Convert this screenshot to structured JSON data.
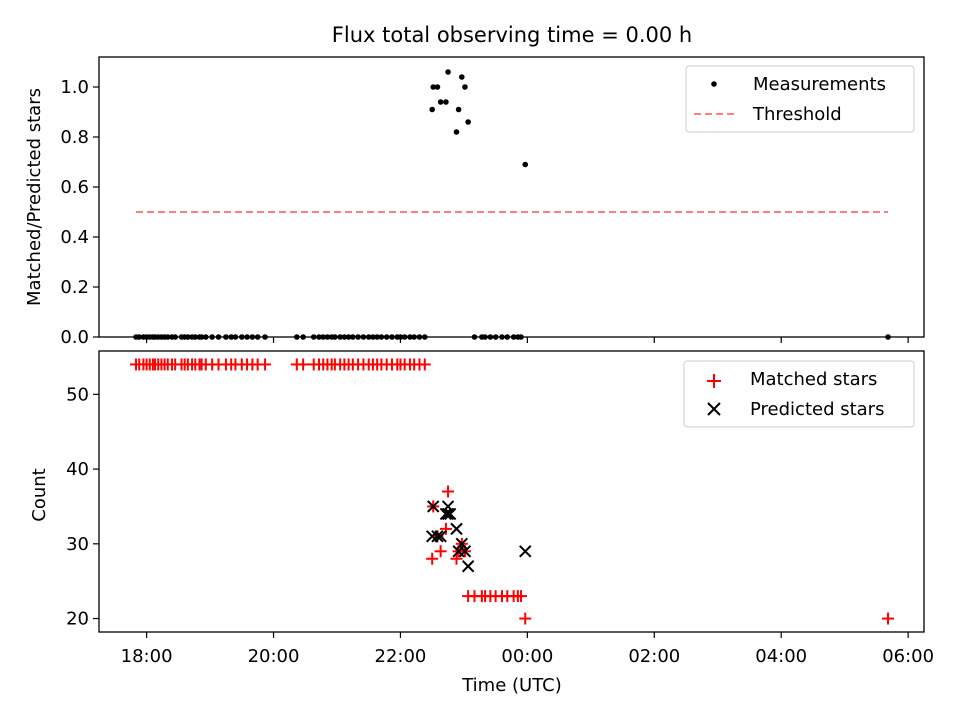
{
  "chart_data": [
    {
      "type": "scatter",
      "title": "Flux total observing time = 0.00 h",
      "xlabel": "",
      "ylabel": "Matched/Predicted stars",
      "xlim": [
        "17:15",
        "30:15"
      ],
      "ylim": [
        0.0,
        1.12
      ],
      "yticks": [
        "0.0",
        "0.2",
        "0.4",
        "0.6",
        "0.8",
        "1.0"
      ],
      "legend": "top-right",
      "series": [
        {
          "name": "Measurements",
          "marker": "dot",
          "color": "#000000",
          "x": [
            "17:50",
            "17:53",
            "17:57",
            "18:00",
            "18:03",
            "18:06",
            "18:08",
            "18:11",
            "18:14",
            "18:17",
            "18:20",
            "18:24",
            "18:27",
            "18:33",
            "18:36",
            "18:39",
            "18:43",
            "18:46",
            "18:50",
            "18:52",
            "18:56",
            "19:02",
            "19:08",
            "19:15",
            "19:20",
            "19:24",
            "19:30",
            "19:35",
            "19:40",
            "19:45",
            "19:52",
            "20:22",
            "20:28",
            "20:38",
            "20:43",
            "20:47",
            "20:51",
            "20:55",
            "20:58",
            "21:03",
            "21:07",
            "21:11",
            "21:15",
            "21:20",
            "21:25",
            "21:30",
            "21:34",
            "21:38",
            "21:42",
            "21:47",
            "21:52",
            "21:57",
            "22:00",
            "22:04",
            "22:09",
            "22:13",
            "22:18",
            "22:23",
            "22:30",
            "22:31",
            "22:35",
            "22:38",
            "22:43",
            "22:45",
            "22:53",
            "22:55",
            "22:58",
            "23:01",
            "23:04",
            "23:10",
            "23:17",
            "23:20",
            "23:25",
            "23:30",
            "23:36",
            "23:41",
            "23:47",
            "23:51",
            "23:54",
            "23:58",
            "29:41"
          ],
          "y": [
            0,
            0,
            0,
            0,
            0,
            0,
            0,
            0,
            0,
            0,
            0,
            0,
            0,
            0,
            0,
            0,
            0,
            0,
            0,
            0,
            0,
            0,
            0,
            0,
            0,
            0,
            0,
            0,
            0,
            0,
            0,
            0,
            0,
            0,
            0,
            0,
            0,
            0,
            0,
            0,
            0,
            0,
            0,
            0,
            0,
            0,
            0,
            0,
            0,
            0,
            0,
            0,
            0,
            0,
            0,
            0,
            0,
            0,
            0.91,
            1.0,
            1.0,
            0.94,
            0.94,
            1.06,
            0.82,
            0.91,
            1.04,
            1.0,
            0.86,
            0,
            0,
            0,
            0,
            0,
            0,
            0,
            0,
            0,
            0,
            0.69,
            0
          ]
        },
        {
          "name": "Threshold",
          "style": "dashed",
          "color": "#ff7f7f",
          "x": [
            "17:50",
            "29:41"
          ],
          "y": [
            0.5,
            0.5
          ]
        }
      ]
    },
    {
      "type": "scatter",
      "title": "",
      "xlabel": "Time (UTC)",
      "ylabel": "Count",
      "xlim": [
        "17:15",
        "30:15"
      ],
      "ylim": [
        18.2,
        55.8
      ],
      "xticks": [
        "18:00",
        "20:00",
        "22:00",
        "00:00",
        "02:00",
        "04:00",
        "06:00"
      ],
      "yticks": [
        "20",
        "30",
        "40",
        "50"
      ],
      "legend": "top-right",
      "series": [
        {
          "name": "Matched stars",
          "marker": "plus",
          "color": "#ff0000",
          "x": [
            "17:50",
            "17:53",
            "17:57",
            "18:00",
            "18:03",
            "18:06",
            "18:08",
            "18:11",
            "18:14",
            "18:17",
            "18:20",
            "18:24",
            "18:27",
            "18:33",
            "18:36",
            "18:39",
            "18:43",
            "18:46",
            "18:50",
            "18:52",
            "18:56",
            "19:02",
            "19:08",
            "19:15",
            "19:20",
            "19:24",
            "19:30",
            "19:35",
            "19:40",
            "19:45",
            "19:52",
            "20:22",
            "20:28",
            "20:38",
            "20:43",
            "20:47",
            "20:51",
            "20:55",
            "20:58",
            "21:03",
            "21:07",
            "21:11",
            "21:15",
            "21:20",
            "21:25",
            "21:30",
            "21:34",
            "21:38",
            "21:42",
            "21:47",
            "21:52",
            "21:57",
            "22:00",
            "22:04",
            "22:09",
            "22:13",
            "22:18",
            "22:23",
            "22:30",
            "22:31",
            "22:35",
            "22:38",
            "22:43",
            "22:45",
            "22:53",
            "22:55",
            "22:58",
            "23:01",
            "23:04",
            "23:10",
            "23:17",
            "23:20",
            "23:25",
            "23:30",
            "23:36",
            "23:41",
            "23:47",
            "23:51",
            "23:54",
            "23:58",
            "29:41"
          ],
          "y": [
            54,
            54,
            54,
            54,
            54,
            54,
            54,
            54,
            54,
            54,
            54,
            54,
            54,
            54,
            54,
            54,
            54,
            54,
            54,
            54,
            54,
            54,
            54,
            54,
            54,
            54,
            54,
            54,
            54,
            54,
            54,
            54,
            54,
            54,
            54,
            54,
            54,
            54,
            54,
            54,
            54,
            54,
            54,
            54,
            54,
            54,
            54,
            54,
            54,
            54,
            54,
            54,
            54,
            54,
            54,
            54,
            54,
            54,
            28,
            35,
            31,
            29,
            32,
            37,
            28,
            29,
            30,
            29,
            23,
            23,
            23,
            23,
            23,
            23,
            23,
            23,
            23,
            23,
            23,
            20,
            20
          ]
        },
        {
          "name": "Predicted stars",
          "marker": "x",
          "color": "#000000",
          "x": [
            "22:30",
            "22:31",
            "22:35",
            "22:38",
            "22:43",
            "22:45",
            "22:45",
            "22:47",
            "22:53",
            "22:55",
            "22:58",
            "23:01",
            "23:04",
            "23:58"
          ],
          "y": [
            31,
            35,
            31,
            31,
            34,
            35,
            34,
            34,
            32,
            29,
            30,
            29,
            27,
            29
          ]
        }
      ]
    }
  ]
}
